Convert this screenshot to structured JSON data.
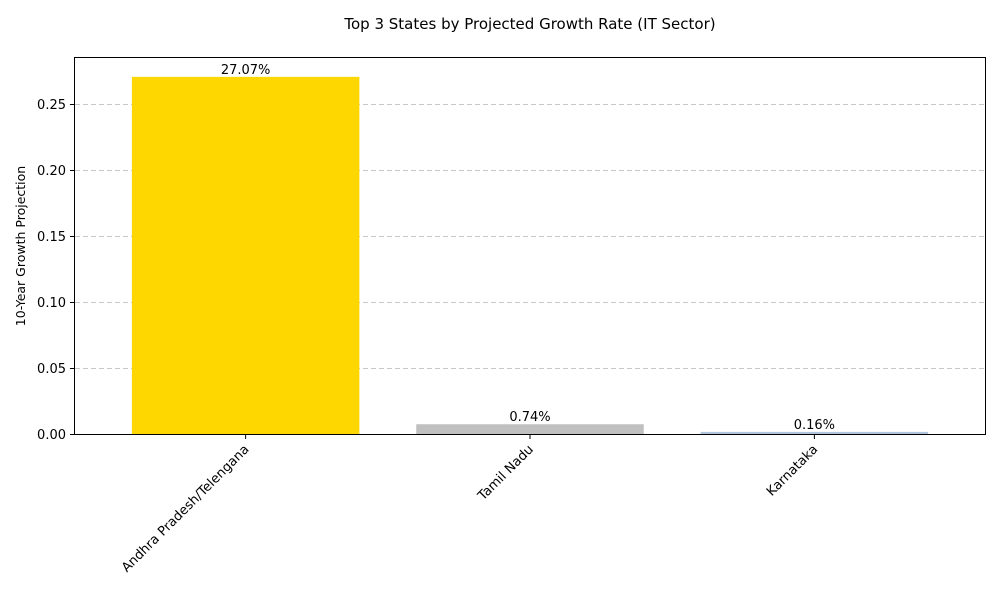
{
  "chart_data": {
    "type": "bar",
    "title": "Top 3 States by Projected Growth Rate (IT Sector)",
    "xlabel": "",
    "ylabel": "10-Year Growth Projection",
    "categories": [
      "Andhra Pradesh/Telengana",
      "Tamil Nadu",
      "Karnataka"
    ],
    "values": [
      0.2707,
      0.0074,
      0.0016
    ],
    "data_labels": [
      "27.07%",
      "0.74%",
      "0.16%"
    ],
    "colors": [
      "#ffd700",
      "#c0c0c0",
      "#b0c4de"
    ],
    "ylim": [
      0,
      0.285
    ],
    "yticks": [
      0.0,
      0.05,
      0.1,
      0.15,
      0.2,
      0.25
    ],
    "ytick_labels": [
      "0.00",
      "0.05",
      "0.10",
      "0.15",
      "0.20",
      "0.25"
    ],
    "grid": "y-dashed",
    "legend": "none"
  }
}
